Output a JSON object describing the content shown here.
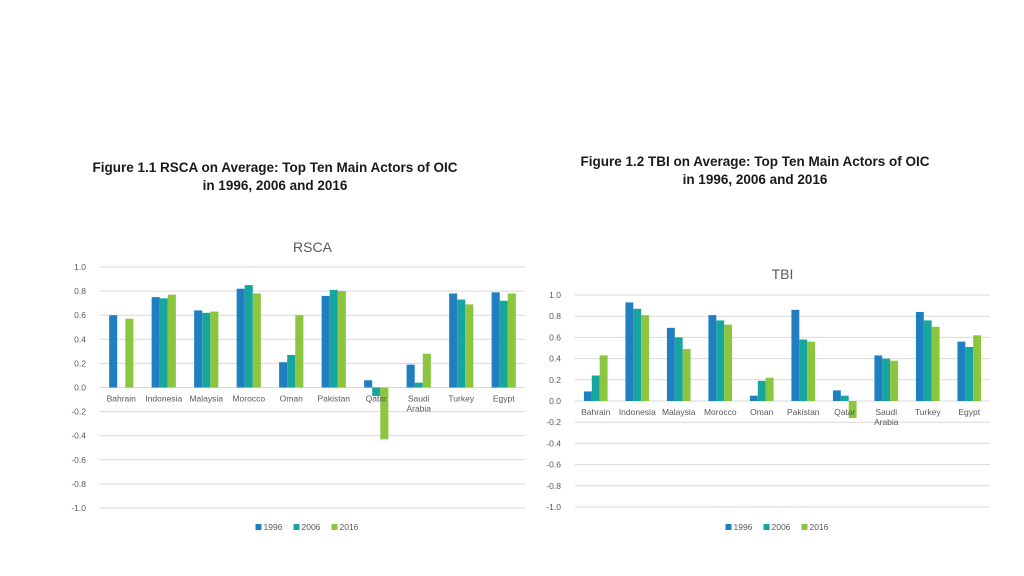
{
  "figures": [
    {
      "title_line1": "Figure 1.1 RSCA on Average: Top Ten Main Actors of OIC",
      "title_line2": "in 1996, 2006 and 2016"
    },
    {
      "title_line1": "Figure 1.2 TBI on Average: Top Ten Main Actors of OIC",
      "title_line2": "in 1996, 2006 and 2016"
    }
  ],
  "colors": {
    "1996": "#1f7fc0",
    "2006": "#17a5a0",
    "2016": "#8cc63f",
    "grid": "#d9d9d9",
    "text": "#595959"
  },
  "chart_data": [
    {
      "type": "bar",
      "title": "RSCA",
      "categories": [
        [
          "Bahrain"
        ],
        [
          "Indonesia"
        ],
        [
          "Malaysia"
        ],
        [
          "Morocco"
        ],
        [
          "Oman"
        ],
        [
          "Pakistan"
        ],
        [
          "Qatar"
        ],
        [
          "Saudi",
          "Arabia"
        ],
        [
          "Turkey"
        ],
        [
          "Egypt"
        ]
      ],
      "series": [
        {
          "name": "1996",
          "values": [
            0.6,
            0.75,
            0.64,
            0.82,
            0.21,
            0.76,
            0.06,
            0.19,
            0.78,
            0.79
          ]
        },
        {
          "name": "2006",
          "values": [
            0.0,
            0.74,
            0.62,
            0.85,
            0.27,
            0.81,
            -0.07,
            0.04,
            0.73,
            0.72
          ]
        },
        {
          "name": "2016",
          "values": [
            0.57,
            0.77,
            0.63,
            0.78,
            0.6,
            0.8,
            -0.43,
            0.28,
            0.69,
            0.78
          ]
        }
      ],
      "yticks": [
        "1.0",
        "0.8",
        "0.6",
        "0.4",
        "0.2",
        "0.0",
        "-0.2",
        "-0.4",
        "-0.6",
        "-0.8",
        "-1.0"
      ],
      "ylim": [
        -1.0,
        1.0
      ],
      "grid": true,
      "legend_position": "bottom"
    },
    {
      "type": "bar",
      "title": "TBI",
      "categories": [
        [
          "Bahrain"
        ],
        [
          "Indonesia"
        ],
        [
          "Malaysia"
        ],
        [
          "Morocco"
        ],
        [
          "Oman"
        ],
        [
          "Pakistan"
        ],
        [
          "Qatar"
        ],
        [
          "Saudi",
          "Arabia"
        ],
        [
          "Turkey"
        ],
        [
          "Egypt"
        ]
      ],
      "series": [
        {
          "name": "1996",
          "values": [
            0.09,
            0.93,
            0.69,
            0.81,
            0.05,
            0.86,
            0.1,
            0.43,
            0.84,
            0.56
          ]
        },
        {
          "name": "2006",
          "values": [
            0.24,
            0.87,
            0.6,
            0.76,
            0.19,
            0.58,
            0.05,
            0.4,
            0.76,
            0.51
          ]
        },
        {
          "name": "2016",
          "values": [
            0.43,
            0.81,
            0.49,
            0.72,
            0.22,
            0.56,
            -0.16,
            0.38,
            0.7,
            0.62
          ]
        }
      ],
      "yticks": [
        "1.0",
        "0.8",
        "0.6",
        "0.4",
        "0.2",
        "0.0",
        "-0.2",
        "-0.4",
        "-0.6",
        "-0.8",
        "-1.0"
      ],
      "ylim": [
        -1.0,
        1.0
      ],
      "grid": true,
      "legend_position": "bottom"
    }
  ]
}
